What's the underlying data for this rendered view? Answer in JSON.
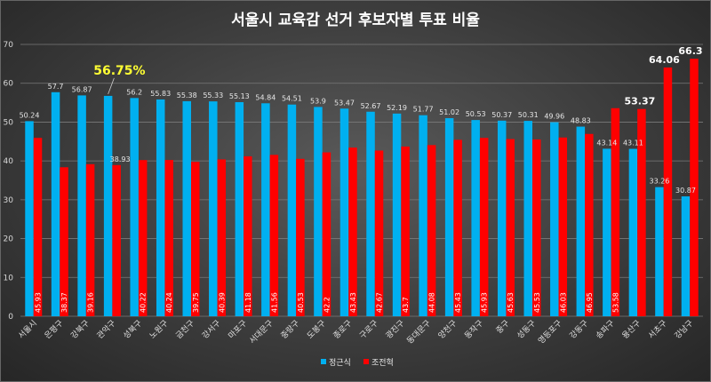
{
  "chart_data": {
    "type": "bar",
    "title": "서울시 교육감 선거 후보자별 투표 비율",
    "xlabel": "",
    "ylabel": "",
    "ylim": [
      0,
      70
    ],
    "yticks": [
      0,
      10,
      20,
      30,
      40,
      50,
      60,
      70
    ],
    "grid": true,
    "legend_position": "bottom",
    "categories": [
      "서울시",
      "은평구",
      "강북구",
      "관악구",
      "성북구",
      "노원구",
      "금천구",
      "강서구",
      "마포구",
      "서대문구",
      "중랑구",
      "도봉구",
      "종로구",
      "구로구",
      "광진구",
      "동대문구",
      "양천구",
      "동작구",
      "중구",
      "성동구",
      "영등포구",
      "강동구",
      "송파구",
      "용산구",
      "서초구",
      "강남구"
    ],
    "series": [
      {
        "name": "정근식",
        "color": "#00b0f0",
        "values": [
          50.24,
          57.7,
          56.87,
          56.75,
          56.2,
          55.83,
          55.38,
          55.33,
          55.13,
          54.84,
          54.51,
          53.9,
          53.47,
          52.67,
          52.19,
          51.77,
          51.02,
          50.53,
          50.37,
          50.31,
          49.96,
          48.83,
          43.14,
          43.11,
          33.26,
          30.87
        ],
        "labels": [
          "50.24",
          "57.7",
          "56.87",
          "",
          "56.2",
          "55.83",
          "55.38",
          "55.33",
          "55.13",
          "54.84",
          "54.51",
          "53.9",
          "53.47",
          "52.67",
          "52.19",
          "51.77",
          "51.02",
          "50.53",
          "50.37",
          "50.31",
          "49.96",
          "48.83",
          "43.14",
          "43.11",
          "33.26",
          "30.87"
        ]
      },
      {
        "name": "조전혁",
        "color": "#ff0000",
        "values": [
          45.93,
          38.37,
          39.16,
          38.93,
          40.22,
          40.24,
          39.75,
          40.39,
          41.18,
          41.56,
          40.53,
          42.2,
          43.43,
          42.67,
          43.7,
          44.08,
          45.43,
          45.93,
          45.63,
          45.53,
          46.03,
          46.95,
          53.58,
          53.37,
          64.06,
          66.3
        ],
        "labels": [
          "45.93",
          "38.37",
          "39.16",
          "38.93",
          "40.22",
          "40.24",
          "39.75",
          "40.39",
          "41.18",
          "41.56",
          "40.53",
          "42.2",
          "43.43",
          "42.67",
          "43.7",
          "44.08",
          "45.43",
          "45.93",
          "45.63",
          "45.53",
          "46.03",
          "46.95",
          "53.58",
          "53.37",
          "64.06",
          "66.3"
        ]
      }
    ],
    "annotations": {
      "highlight_yellow": "56.75%",
      "highlight_yongsan": "53.37",
      "highlight_seocho": "64.06",
      "highlight_gangnam": "66.3"
    }
  }
}
